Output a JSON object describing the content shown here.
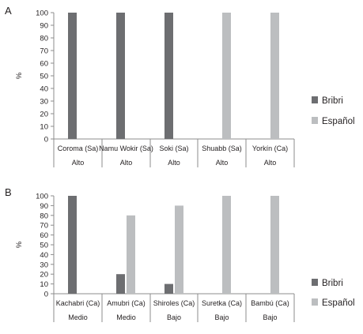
{
  "chart_data": [
    {
      "type": "bar",
      "panel_label": "A",
      "ylabel": "%",
      "ylim": [
        0,
        100
      ],
      "yticks": [
        0,
        10,
        20,
        30,
        40,
        50,
        60,
        70,
        80,
        90,
        100
      ],
      "categories": [
        "Coroma (Sa)",
        "Namu Wokir (Sa)",
        "Soki (Sa)",
        "Shuabb (Sa)",
        "Yorkín (Ca)"
      ],
      "sublabels": [
        "Alto",
        "Alto",
        "Alto",
        "Alto",
        "Alto"
      ],
      "series": [
        {
          "name": "Bribri",
          "color": "#6d6e71",
          "values": [
            100,
            100,
            100,
            0,
            0
          ]
        },
        {
          "name": "Español",
          "color": "#bcbec0",
          "values": [
            0,
            0,
            0,
            100,
            100
          ]
        }
      ],
      "grid": false,
      "legend": "right"
    },
    {
      "type": "bar",
      "panel_label": "B",
      "ylabel": "%",
      "ylim": [
        0,
        100
      ],
      "yticks": [
        0,
        10,
        20,
        30,
        40,
        50,
        60,
        70,
        80,
        90,
        100
      ],
      "categories": [
        "Kachabri (Ca)",
        "Amubri (Ca)",
        "Shiroles (Ca)",
        "Suretka (Ca)",
        "Bambú (Ca)"
      ],
      "sublabels": [
        "Medio",
        "Medio",
        "Bajo",
        "Bajo",
        "Bajo"
      ],
      "series": [
        {
          "name": "Bribri",
          "color": "#6d6e71",
          "values": [
            100,
            20,
            10,
            0,
            0
          ]
        },
        {
          "name": "Español",
          "color": "#bcbec0",
          "values": [
            0,
            80,
            90,
            100,
            100
          ]
        }
      ],
      "grid": false,
      "legend": "right"
    }
  ]
}
